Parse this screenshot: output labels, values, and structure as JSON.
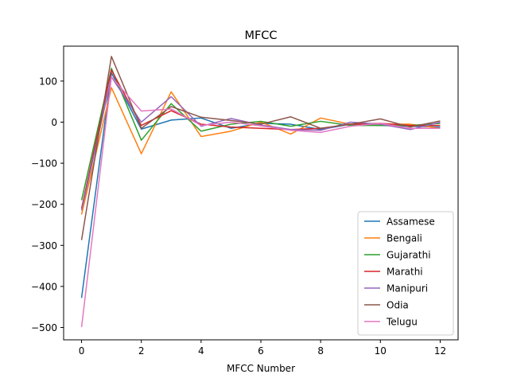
{
  "chart_data": {
    "type": "line",
    "title": "MFCC",
    "xlabel": "MFCC Number",
    "ylabel": "",
    "xlim": [
      -0.6,
      12.6
    ],
    "ylim": [
      -530,
      185
    ],
    "xticks": [
      0,
      2,
      4,
      6,
      8,
      10,
      12
    ],
    "xtick_labels": [
      "0",
      "2",
      "4",
      "6",
      "8",
      "10",
      "12"
    ],
    "yticks": [
      100,
      0,
      -100,
      -200,
      -300,
      -400,
      -500
    ],
    "ytick_labels": [
      "100",
      "0",
      "−100",
      "−200",
      "−300",
      "−400",
      "−500"
    ],
    "grid": false,
    "legend_position": "lower-right",
    "x": [
      0,
      1,
      2,
      3,
      4,
      5,
      6,
      7,
      8,
      9,
      10,
      11,
      12
    ],
    "series": [
      {
        "name": "Assamese",
        "color": "#1f77b4",
        "values": [
          -428,
          120,
          -17,
          5,
          10,
          -15,
          -3,
          -5,
          -18,
          -5,
          -8,
          -10,
          -12
        ]
      },
      {
        "name": "Bengali",
        "color": "#ff7f0e",
        "values": [
          -225,
          84,
          -77,
          74,
          -35,
          -22,
          0,
          -29,
          10,
          -5,
          -5,
          -5,
          -15
        ]
      },
      {
        "name": "Gujarathi",
        "color": "#2ca02c",
        "values": [
          -190,
          131,
          -44,
          45,
          -22,
          -5,
          2,
          -10,
          2,
          -8,
          -8,
          -8,
          -3
        ]
      },
      {
        "name": "Marathi",
        "color": "#d62728",
        "values": [
          -210,
          127,
          -8,
          28,
          -5,
          -12,
          -15,
          -18,
          -15,
          -5,
          -3,
          -8,
          -8
        ]
      },
      {
        "name": "Manipuri",
        "color": "#9467bd",
        "values": [
          -215,
          110,
          0,
          62,
          -10,
          9,
          -7,
          -18,
          -20,
          0,
          -5,
          -18,
          0
        ]
      },
      {
        "name": "Odia",
        "color": "#8c564b",
        "values": [
          -287,
          160,
          -15,
          38,
          12,
          4,
          -5,
          13,
          -15,
          -5,
          8,
          -12,
          3
        ]
      },
      {
        "name": "Telugu",
        "color": "#e377c2",
        "values": [
          -499,
          110,
          27,
          32,
          -8,
          0,
          -9,
          -20,
          -25,
          -10,
          -3,
          -15,
          -15
        ]
      }
    ]
  }
}
